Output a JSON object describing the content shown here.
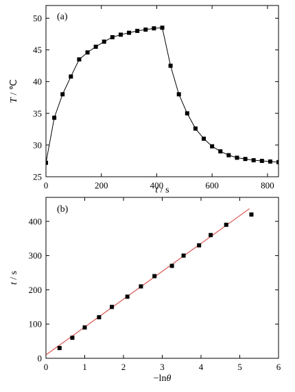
{
  "chart_data": [
    {
      "type": "line",
      "panel_label": "(a)",
      "xlabel_var": "t",
      "xlabel_unit": " / s",
      "ylabel_var": "T",
      "ylabel_unit": " / ℃",
      "xlim": [
        0,
        840
      ],
      "ylim": [
        25,
        52
      ],
      "xticks": [
        0,
        200,
        400,
        600,
        800
      ],
      "yticks": [
        25,
        30,
        35,
        40,
        45,
        50
      ],
      "grid": false,
      "marker": "square",
      "series": [
        {
          "x": [
            0,
            30,
            60,
            90,
            120,
            150,
            180,
            210,
            240,
            270,
            300,
            330,
            360,
            390,
            420,
            450,
            480,
            510,
            540,
            570,
            600,
            630,
            660,
            690,
            720,
            750,
            780,
            810,
            840
          ],
          "y": [
            27.2,
            34.3,
            38.0,
            40.8,
            43.5,
            44.6,
            45.5,
            46.3,
            47.0,
            47.4,
            47.7,
            48.0,
            48.2,
            48.4,
            48.5,
            42.5,
            38.0,
            35.0,
            32.6,
            31.0,
            29.8,
            29.0,
            28.4,
            28.0,
            27.8,
            27.6,
            27.5,
            27.4,
            27.3
          ]
        }
      ]
    },
    {
      "type": "scatter",
      "panel_label": "(b)",
      "xlabel_prefix": "−ln",
      "xlabel_var": "θ",
      "ylabel_var": "t",
      "ylabel_unit": " / s",
      "xlim": [
        0,
        6
      ],
      "ylim": [
        0,
        470
      ],
      "xticks": [
        0,
        1,
        2,
        3,
        4,
        5,
        6
      ],
      "yticks": [
        0,
        100,
        200,
        300,
        400
      ],
      "grid": false,
      "marker": "square",
      "fit_color": "#d9534f",
      "points": {
        "x": [
          0.35,
          0.68,
          1.0,
          1.37,
          1.7,
          2.1,
          2.45,
          2.8,
          3.25,
          3.55,
          3.95,
          4.25,
          4.65,
          5.3
        ],
        "y": [
          30,
          60,
          90,
          120,
          150,
          180,
          210,
          240,
          270,
          300,
          330,
          360,
          390,
          420
        ]
      },
      "fit_line": {
        "x": [
          0,
          5.25
        ],
        "y": [
          10,
          437
        ]
      }
    }
  ]
}
